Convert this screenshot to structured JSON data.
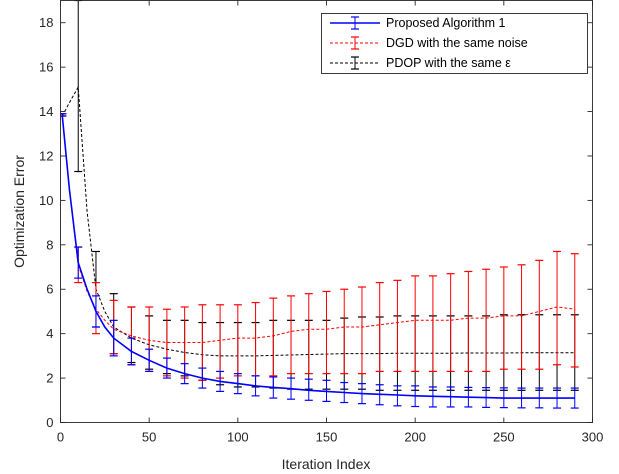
{
  "chart_data": {
    "type": "line",
    "xlabel": "Iteration Index",
    "ylabel": "Optimization Error",
    "xlim": [
      0,
      300
    ],
    "ylim": [
      0,
      19
    ],
    "xticks": [
      0,
      50,
      100,
      150,
      200,
      250,
      300
    ],
    "yticks": [
      0,
      2,
      4,
      6,
      8,
      10,
      12,
      14,
      16,
      18
    ],
    "grid": false,
    "legend_position": "top-right",
    "series": [
      {
        "name": "Proposed Algorithm 1",
        "color": "#0000ff",
        "line_style": "solid",
        "line": {
          "x": [
            1,
            5,
            10,
            15,
            20,
            25,
            30,
            40,
            50,
            60,
            70,
            80,
            90,
            100,
            110,
            120,
            130,
            140,
            150,
            160,
            170,
            180,
            190,
            200,
            210,
            220,
            230,
            240,
            250,
            260,
            270,
            280,
            290
          ],
          "y": [
            13.8,
            10.5,
            7.2,
            6.0,
            5.0,
            4.3,
            3.8,
            3.2,
            2.8,
            2.45,
            2.2,
            2.0,
            1.85,
            1.75,
            1.65,
            1.58,
            1.52,
            1.45,
            1.4,
            1.35,
            1.3,
            1.27,
            1.24,
            1.2,
            1.18,
            1.16,
            1.14,
            1.12,
            1.1,
            1.1,
            1.1,
            1.1,
            1.1
          ]
        },
        "errorbars": {
          "x": [
            1,
            10,
            20,
            30,
            40,
            50,
            60,
            70,
            80,
            90,
            100,
            110,
            120,
            130,
            140,
            150,
            160,
            170,
            180,
            190,
            200,
            210,
            220,
            230,
            240,
            250,
            260,
            270,
            280,
            290
          ],
          "y": [
            13.8,
            7.2,
            5.0,
            3.8,
            3.2,
            2.8,
            2.45,
            2.2,
            2.0,
            1.85,
            1.75,
            1.65,
            1.58,
            1.52,
            1.45,
            1.4,
            1.35,
            1.3,
            1.27,
            1.24,
            1.2,
            1.18,
            1.16,
            1.14,
            1.12,
            1.1,
            1.1,
            1.1,
            1.1,
            1.1
          ],
          "low": [
            13.8,
            6.5,
            4.3,
            3.0,
            2.6,
            2.3,
            2.0,
            1.75,
            1.55,
            1.4,
            1.3,
            1.2,
            1.1,
            1.05,
            1.0,
            0.95,
            0.9,
            0.85,
            0.8,
            0.75,
            0.72,
            0.7,
            0.7,
            0.7,
            0.68,
            0.67,
            0.66,
            0.66,
            0.65,
            0.65
          ],
          "high": [
            13.9,
            7.9,
            5.7,
            4.6,
            3.8,
            3.3,
            2.9,
            2.65,
            2.45,
            2.3,
            2.2,
            2.1,
            2.05,
            2.0,
            1.95,
            1.9,
            1.8,
            1.75,
            1.7,
            1.65,
            1.65,
            1.6,
            1.6,
            1.58,
            1.57,
            1.56,
            1.55,
            1.55,
            1.55,
            1.55
          ]
        }
      },
      {
        "name": "DGD with the same noise",
        "color": "#ff0000",
        "line_style": "dashed",
        "line": {
          "x": [
            1,
            5,
            10,
            15,
            20,
            25,
            30,
            40,
            50,
            60,
            70,
            80,
            90,
            100,
            110,
            120,
            130,
            140,
            150,
            160,
            170,
            180,
            190,
            200,
            210,
            220,
            230,
            240,
            250,
            260,
            270,
            280,
            290
          ],
          "y": [
            13.8,
            10.5,
            7.1,
            5.9,
            5.1,
            4.6,
            4.2,
            3.9,
            3.7,
            3.6,
            3.6,
            3.6,
            3.7,
            3.8,
            3.8,
            3.9,
            4.1,
            4.2,
            4.2,
            4.3,
            4.3,
            4.4,
            4.5,
            4.6,
            4.6,
            4.6,
            4.7,
            4.7,
            4.8,
            4.8,
            5.0,
            5.2,
            5.1
          ]
        },
        "errorbars": {
          "x": [
            1,
            10,
            20,
            30,
            40,
            50,
            60,
            70,
            80,
            90,
            100,
            110,
            120,
            130,
            140,
            150,
            160,
            170,
            180,
            190,
            200,
            210,
            220,
            230,
            240,
            250,
            260,
            270,
            280,
            290
          ],
          "y": [
            13.8,
            7.1,
            5.1,
            4.2,
            3.9,
            3.7,
            3.6,
            3.6,
            3.6,
            3.7,
            3.8,
            3.8,
            3.9,
            4.1,
            4.2,
            4.2,
            4.3,
            4.3,
            4.4,
            4.5,
            4.6,
            4.6,
            4.6,
            4.7,
            4.7,
            4.8,
            4.8,
            5.0,
            5.2,
            5.1
          ],
          "low": [
            13.8,
            6.3,
            4.0,
            3.1,
            2.6,
            2.3,
            2.1,
            2.0,
            1.9,
            2.0,
            2.1,
            2.1,
            2.1,
            2.2,
            2.2,
            2.2,
            2.2,
            2.2,
            2.3,
            2.3,
            2.3,
            2.3,
            2.3,
            2.3,
            2.3,
            2.4,
            2.4,
            2.4,
            2.6,
            2.5
          ],
          "high": [
            13.9,
            7.9,
            6.3,
            5.5,
            5.2,
            5.2,
            5.1,
            5.2,
            5.3,
            5.3,
            5.3,
            5.4,
            5.6,
            5.7,
            5.8,
            5.9,
            6.0,
            6.1,
            6.3,
            6.4,
            6.6,
            6.6,
            6.7,
            6.8,
            6.9,
            7.0,
            7.1,
            7.3,
            7.7,
            7.6
          ]
        }
      },
      {
        "name": "PDOP with the same ε",
        "color": "#000000",
        "line_style": "dashed",
        "line": {
          "x": [
            1,
            5,
            10,
            15,
            20,
            25,
            30,
            40,
            50,
            60,
            70,
            80,
            90,
            100,
            110,
            120,
            130,
            140,
            150,
            160,
            170,
            180,
            190,
            200,
            210,
            220,
            230,
            240,
            250,
            260,
            270,
            280,
            290
          ],
          "y": [
            13.8,
            14.4,
            15.1,
            9.5,
            6.0,
            5.0,
            4.3,
            3.8,
            3.5,
            3.3,
            3.15,
            3.05,
            3.0,
            3.0,
            3.0,
            3.02,
            3.04,
            3.06,
            3.08,
            3.1,
            3.1,
            3.1,
            3.12,
            3.12,
            3.12,
            3.12,
            3.13,
            3.13,
            3.13,
            3.14,
            3.14,
            3.14,
            3.14
          ]
        },
        "errorbars": {
          "x": [
            1,
            10,
            20,
            30,
            40,
            50,
            60,
            70,
            80,
            90,
            100,
            110,
            120,
            130,
            140,
            150,
            160,
            170,
            180,
            190,
            200,
            210,
            220,
            230,
            240,
            250,
            260,
            270,
            280,
            290
          ],
          "y": [
            13.8,
            15.1,
            6.0,
            4.3,
            3.8,
            3.5,
            3.3,
            3.15,
            3.05,
            3.0,
            3.0,
            3.0,
            3.02,
            3.04,
            3.06,
            3.08,
            3.1,
            3.1,
            3.1,
            3.12,
            3.12,
            3.12,
            3.12,
            3.13,
            3.13,
            3.13,
            3.14,
            3.14,
            3.14,
            3.14
          ],
          "low": [
            13.8,
            11.3,
            4.3,
            3.1,
            2.7,
            2.4,
            2.2,
            2.1,
            1.9,
            1.7,
            1.6,
            1.6,
            1.55,
            1.5,
            1.5,
            1.5,
            1.5,
            1.5,
            1.45,
            1.45,
            1.45,
            1.45,
            1.45,
            1.45,
            1.45,
            1.45,
            1.45,
            1.45,
            1.45,
            1.45
          ],
          "high": [
            13.9,
            19.0,
            7.7,
            5.8,
            5.2,
            4.8,
            4.6,
            4.6,
            4.5,
            4.5,
            4.5,
            4.5,
            4.6,
            4.6,
            4.6,
            4.6,
            4.7,
            4.75,
            4.75,
            4.8,
            4.8,
            4.8,
            4.8,
            4.8,
            4.8,
            4.85,
            4.85,
            4.85,
            4.85,
            4.85
          ]
        }
      }
    ]
  }
}
